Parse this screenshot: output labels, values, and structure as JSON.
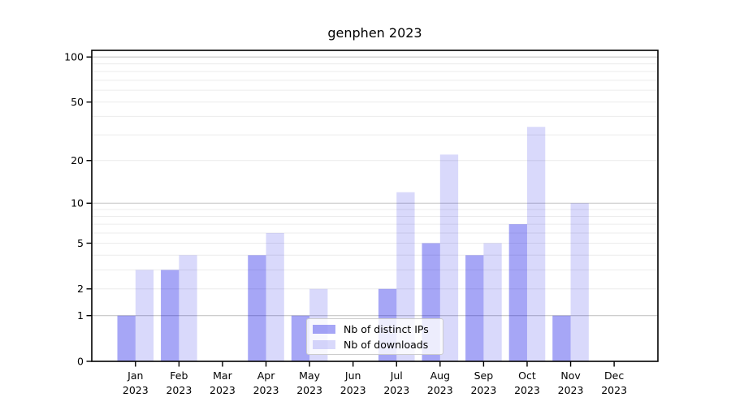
{
  "chart_data": {
    "type": "bar",
    "title": "genphen 2023",
    "xlabel": "",
    "ylabel": "",
    "year": "2023",
    "categories": [
      "Jan",
      "Feb",
      "Mar",
      "Apr",
      "May",
      "Jun",
      "Jul",
      "Aug",
      "Sep",
      "Oct",
      "Nov",
      "Dec"
    ],
    "series": [
      {
        "name": "Nb of distinct IPs",
        "key": "distinct-ips",
        "color": "rgba(0,0,230,0.35)",
        "values": [
          1,
          3,
          0,
          4,
          1,
          0,
          2,
          5,
          4,
          7,
          1,
          0
        ]
      },
      {
        "name": "Nb of downloads",
        "key": "downloads",
        "color": "rgba(0,0,230,0.15)",
        "values": [
          3,
          4,
          0,
          6,
          2,
          0,
          12,
          22,
          5,
          34,
          10,
          0
        ]
      }
    ],
    "yscale": "log1p",
    "ylim": [
      0,
      110
    ],
    "yticks": [
      0,
      1,
      2,
      5,
      10,
      20,
      50,
      100
    ],
    "major_gridlines": [
      1,
      10,
      100
    ],
    "minor_gridlines": [
      2,
      3,
      4,
      5,
      6,
      7,
      8,
      9,
      20,
      30,
      40,
      50,
      60,
      70,
      80,
      90
    ],
    "grid": true,
    "legend_position": "lower-center-inside"
  },
  "colors": {
    "background": "#ffffff",
    "spine": "#000000",
    "major_grid": "#c6c6c6",
    "minor_grid": "#ececec",
    "text": "#000000",
    "legend_border": "#cccccc",
    "legend_bg": "rgba(255,255,255,0.8)"
  }
}
